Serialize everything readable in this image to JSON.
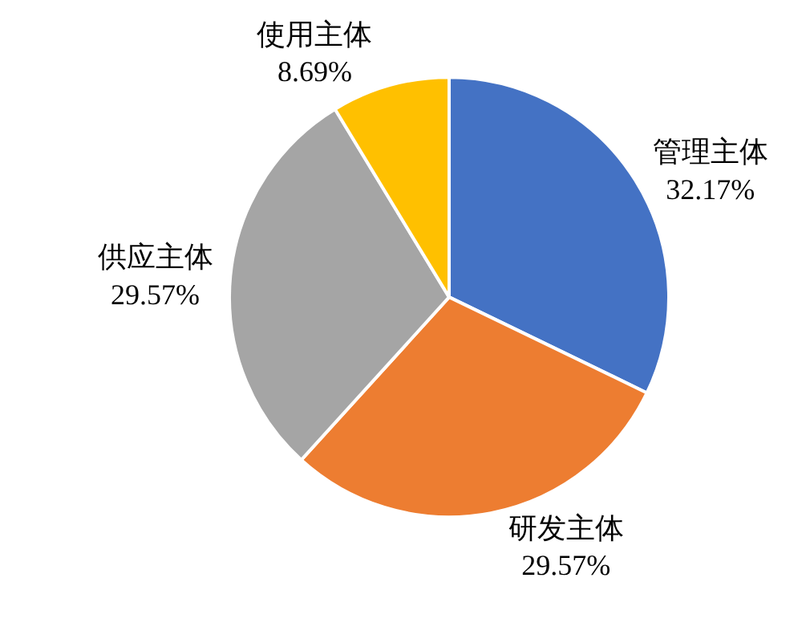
{
  "chart_data": {
    "type": "pie",
    "categories": [
      "管理主体",
      "研发主体",
      "供应主体",
      "使用主体"
    ],
    "values": [
      32.17,
      29.57,
      29.57,
      8.69
    ],
    "value_labels": [
      "32.17%",
      "29.57%",
      "29.57%",
      "8.69%"
    ],
    "colors": [
      "#4472c4",
      "#ed7d31",
      "#a5a5a5",
      "#ffc000"
    ],
    "legend": false
  }
}
